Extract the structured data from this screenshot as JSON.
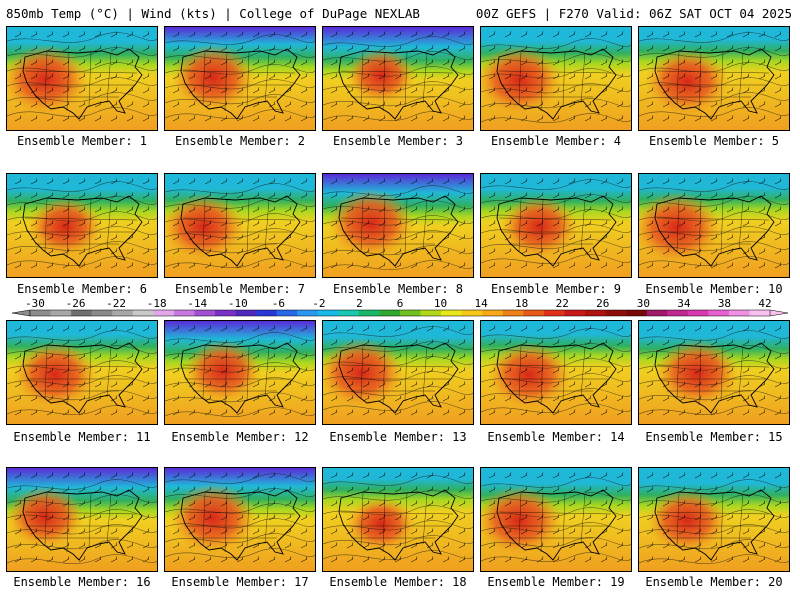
{
  "header": {
    "left": "850mb Temp (°C) | Wind (kts) | College of DuPage NEXLAB",
    "right": "00Z GEFS | F270 Valid: 06Z SAT OCT 04 2025"
  },
  "panels": [
    {
      "label": "Ensemble Member: 1",
      "hot": 0.85,
      "cold": 0.55
    },
    {
      "label": "Ensemble Member: 2",
      "hot": 0.8,
      "cold": 0.75
    },
    {
      "label": "Ensemble Member: 3",
      "hot": 0.55,
      "cold": 0.95
    },
    {
      "label": "Ensemble Member: 4",
      "hot": 0.85,
      "cold": 0.5
    },
    {
      "label": "Ensemble Member: 5",
      "hot": 0.8,
      "cold": 0.35
    },
    {
      "label": "Ensemble Member: 6",
      "hot": 0.65,
      "cold": 0.55
    },
    {
      "label": "Ensemble Member: 7",
      "hot": 0.8,
      "cold": 0.5
    },
    {
      "label": "Ensemble Member: 8",
      "hot": 0.85,
      "cold": 0.85
    },
    {
      "label": "Ensemble Member: 9",
      "hot": 0.7,
      "cold": 0.55
    },
    {
      "label": "Ensemble Member: 10",
      "hot": 0.9,
      "cold": 0.45
    },
    {
      "label": "Ensemble Member: 11",
      "hot": 0.8,
      "cold": 0.45
    },
    {
      "label": "Ensemble Member: 12",
      "hot": 0.7,
      "cold": 0.8
    },
    {
      "label": "Ensemble Member: 13",
      "hot": 0.85,
      "cold": 0.6
    },
    {
      "label": "Ensemble Member: 14",
      "hot": 0.8,
      "cold": 0.4
    },
    {
      "label": "Ensemble Member: 15",
      "hot": 0.8,
      "cold": 0.6
    },
    {
      "label": "Ensemble Member: 16",
      "hot": 0.7,
      "cold": 0.9
    },
    {
      "label": "Ensemble Member: 17",
      "hot": 0.85,
      "cold": 0.8
    },
    {
      "label": "Ensemble Member: 18",
      "hot": 0.55,
      "cold": 0.2
    },
    {
      "label": "Ensemble Member: 19",
      "hot": 0.85,
      "cold": 0.55
    },
    {
      "label": "Ensemble Member: 20",
      "hot": 0.75,
      "cold": 0.55
    }
  ],
  "colorbar": {
    "ticks": [
      "-30",
      "-26",
      "-22",
      "-18",
      "-14",
      "-10",
      "-6",
      "-2",
      "2",
      "6",
      "10",
      "14",
      "18",
      "22",
      "26",
      "30",
      "34",
      "38",
      "42"
    ],
    "colors": [
      "#8c8c8c",
      "#a7a7a7",
      "#6f6f6f",
      "#8a8a8a",
      "#a8a8a8",
      "#c8c8c8",
      "#e0a8e8",
      "#c878e0",
      "#a050d0",
      "#7a30c8",
      "#5028c0",
      "#2838d8",
      "#2868e8",
      "#2898f0",
      "#18b8e8",
      "#18c8b0",
      "#18b868",
      "#30a830",
      "#70c020",
      "#b0d818",
      "#e8e818",
      "#f8c818",
      "#f8a818",
      "#f08018",
      "#e85818",
      "#e03018",
      "#c81818",
      "#b01010",
      "#900c0c",
      "#780808",
      "#a01868",
      "#c02890",
      "#d838b0",
      "#e860d0",
      "#f090e0",
      "#f8c0f0"
    ],
    "unit": "°C"
  },
  "theme": {
    "cold_deep": "#5a2ad8",
    "cold_blue": "#2a6ae8",
    "cold_cyan": "#20b8d8",
    "cool_green": "#30b060",
    "mild_lime": "#a8d820",
    "warm_yellow": "#f0d020",
    "warm_orange": "#f0a020",
    "hot_orange": "#e86020",
    "hot_red": "#d82818"
  }
}
